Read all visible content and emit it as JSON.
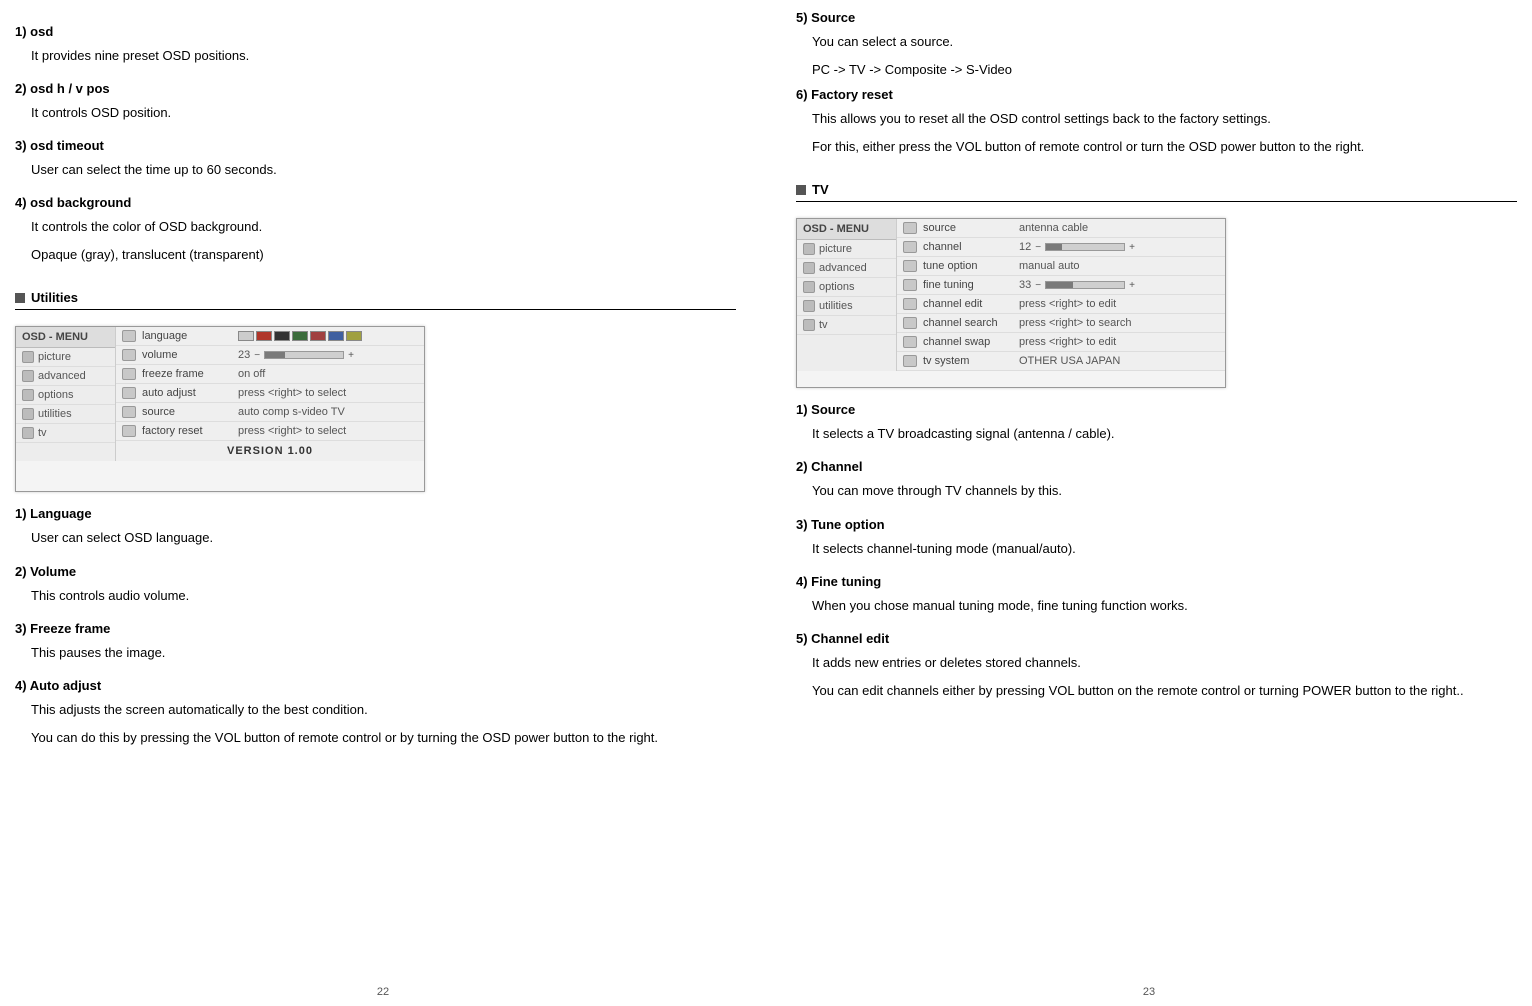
{
  "leftPage": {
    "items": [
      {
        "title": "1) osd",
        "desc": [
          "It provides nine preset OSD positions."
        ]
      },
      {
        "title": "2) osd h / v pos",
        "desc": [
          "It controls OSD position."
        ]
      },
      {
        "title": "3) osd timeout",
        "desc": [
          "User can select the time up to 60 seconds."
        ]
      },
      {
        "title": "4) osd background",
        "desc": [
          "It controls the color of OSD background.",
          "Opaque (gray), translucent (transparent)"
        ]
      }
    ],
    "sectionTitle": "Utilities",
    "osd": {
      "sidebarHeader": "OSD - MENU",
      "sidebarItems": [
        "picture",
        "advanced",
        "options",
        "utilities",
        "tv"
      ],
      "rows": [
        {
          "label": "language",
          "valueType": "flags"
        },
        {
          "label": "volume",
          "valueType": "slider",
          "num": "23",
          "fillPct": 25
        },
        {
          "label": "freeze frame",
          "valueType": "text",
          "text": "on        off"
        },
        {
          "label": "auto adjust",
          "valueType": "text",
          "text": "press <right> to select"
        },
        {
          "label": "source",
          "valueType": "text",
          "text": "auto   comp   s-video   TV"
        },
        {
          "label": "factory reset",
          "valueType": "text",
          "text": "press <right> to select"
        }
      ],
      "version": "VERSION 1.00"
    },
    "items2": [
      {
        "title": "1) Language",
        "desc": [
          "User can select OSD language."
        ]
      },
      {
        "title": "2) Volume",
        "desc": [
          "This controls audio volume."
        ]
      },
      {
        "title": "3) Freeze frame",
        "desc": [
          "This pauses the image."
        ]
      },
      {
        "title": "4) Auto adjust",
        "desc": [
          "This adjusts the screen automatically to the best condition.",
          "You can do this by pressing the VOL button of remote control or by turning the OSD power button to the right."
        ]
      }
    ],
    "pageNumber": "22"
  },
  "rightPage": {
    "itemsTop": [
      {
        "title": "5) Source",
        "desc": [
          "You can select a source.",
          "PC -> TV -> Composite -> S-Video"
        ]
      },
      {
        "title": "6) Factory reset",
        "desc": [
          "This allows you to reset all the OSD control settings back to the factory settings.",
          "For this, either press the VOL button of remote control or turn the OSD power button to the right."
        ],
        "justify": true
      }
    ],
    "sectionTitle": "TV",
    "osd": {
      "sidebarHeader": "OSD - MENU",
      "sidebarItems": [
        "picture",
        "advanced",
        "options",
        "utilities",
        "tv"
      ],
      "rows": [
        {
          "label": "source",
          "valueType": "text",
          "text": "antenna      cable"
        },
        {
          "label": "channel",
          "valueType": "slider",
          "num": "12",
          "fillPct": 20
        },
        {
          "label": "tune option",
          "valueType": "text",
          "text": "manual    auto"
        },
        {
          "label": "fine tuning",
          "valueType": "slider",
          "num": "33",
          "fillPct": 35
        },
        {
          "label": "channel edit",
          "valueType": "text",
          "text": "press <right> to edit"
        },
        {
          "label": "channel search",
          "valueType": "text",
          "text": "press <right> to search"
        },
        {
          "label": "channel swap",
          "valueType": "text",
          "text": "press <right> to edit"
        },
        {
          "label": "tv system",
          "valueType": "text",
          "text": "OTHER    USA    JAPAN"
        }
      ]
    },
    "itemsBottom": [
      {
        "title": "1) Source",
        "desc": [
          "It selects a TV broadcasting signal (antenna / cable)."
        ]
      },
      {
        "title": "2) Channel",
        "desc": [
          "You can move through TV channels by this."
        ]
      },
      {
        "title": "3) Tune option",
        "desc": [
          "It selects channel-tuning mode (manual/auto)."
        ]
      },
      {
        "title": "4) Fine tuning",
        "desc": [
          "When you chose manual tuning mode, fine tuning function works."
        ]
      },
      {
        "title": "5) Channel edit",
        "desc": [
          "It adds new entries or deletes stored channels.",
          "You can edit channels either by pressing VOL button on the remote control or turning POWER button to the right.."
        ]
      }
    ],
    "pageNumber": "23"
  },
  "flags": {
    "colors": [
      "#ccc",
      "#b0362a",
      "#333",
      "#3a6b3a",
      "#a04040",
      "#4060a0",
      "#a0a040"
    ]
  }
}
